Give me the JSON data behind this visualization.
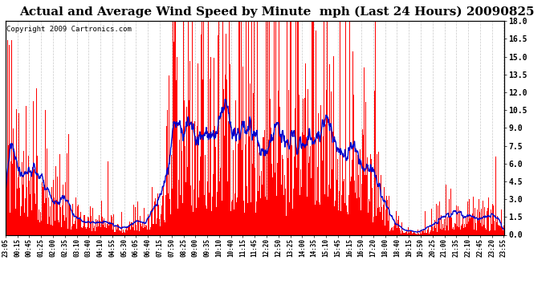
{
  "title": "Actual and Average Wind Speed by Minute  mph (Last 24 Hours) 20090825",
  "copyright": "Copyright 2009 Cartronics.com",
  "ylabel_right_ticks": [
    0.0,
    1.5,
    3.0,
    4.5,
    6.0,
    7.5,
    9.0,
    10.5,
    12.0,
    13.5,
    15.0,
    16.5,
    18.0
  ],
  "ylim": [
    0.0,
    18.0
  ],
  "bar_color": "#FF0000",
  "line_color": "#0000CC",
  "background_color": "#FFFFFF",
  "grid_color": "#BBBBBB",
  "title_fontsize": 11,
  "copyright_fontsize": 6.5,
  "n_points": 1440,
  "xtick_labels": [
    "23:05",
    "00:15",
    "00:45",
    "01:25",
    "02:00",
    "02:35",
    "03:10",
    "03:40",
    "04:10",
    "04:55",
    "05:30",
    "06:05",
    "06:40",
    "07:15",
    "07:50",
    "08:25",
    "09:00",
    "09:35",
    "10:10",
    "10:40",
    "11:15",
    "11:45",
    "12:20",
    "12:50",
    "13:25",
    "14:00",
    "14:35",
    "15:10",
    "15:45",
    "16:15",
    "16:50",
    "17:20",
    "18:00",
    "18:40",
    "19:15",
    "19:50",
    "20:25",
    "21:00",
    "21:35",
    "22:10",
    "22:45",
    "23:20",
    "23:55"
  ]
}
